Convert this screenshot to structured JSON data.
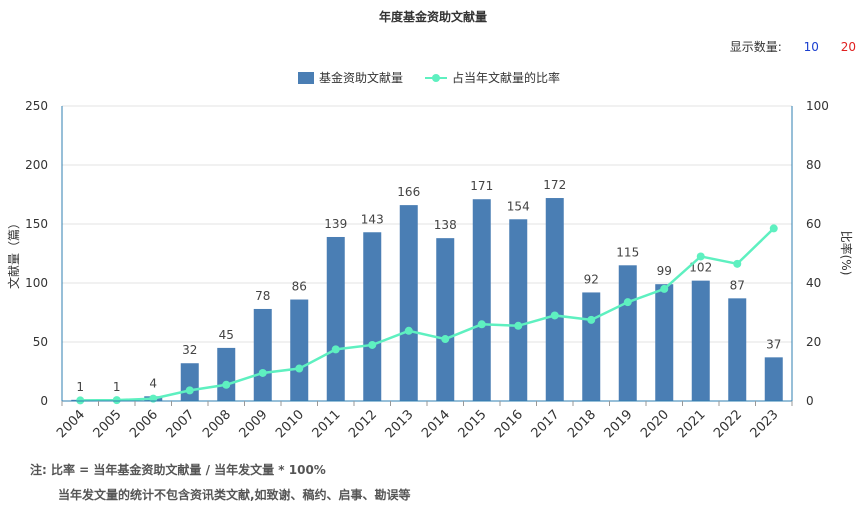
{
  "title": "年度基金资助文献量",
  "display_count": {
    "label": "显示数量:",
    "options": [
      "10",
      "20"
    ]
  },
  "legend": {
    "bar": "基金资助文献量",
    "line": "占当年文献量的比率"
  },
  "notes": {
    "line1": "注:  比率 = 当年基金资助文献量 / 当年发文量 * 100%",
    "line2": "当年发文量的统计不包含资讯类文献,如致谢、稿约、启事、勘误等"
  },
  "colors": {
    "bar": "#4a7eb4",
    "line": "#5ef0c0",
    "axis": "#2f7fb0"
  },
  "chart_data": {
    "type": "bar",
    "categories": [
      "2004",
      "2005",
      "2006",
      "2007",
      "2008",
      "2009",
      "2010",
      "2011",
      "2012",
      "2013",
      "2014",
      "2015",
      "2016",
      "2017",
      "2018",
      "2019",
      "2020",
      "2021",
      "2022",
      "2023"
    ],
    "series": [
      {
        "name": "基金资助文献量",
        "type": "bar",
        "axis": "left",
        "values": [
          1,
          1,
          4,
          32,
          45,
          78,
          86,
          139,
          143,
          166,
          138,
          171,
          154,
          172,
          92,
          115,
          99,
          102,
          87,
          37
        ]
      },
      {
        "name": "占当年文献量的比率",
        "type": "line",
        "axis": "right",
        "values": [
          0.2,
          0.3,
          0.8,
          3.6,
          5.5,
          9.5,
          11,
          17.5,
          19,
          23.8,
          21,
          26,
          25.5,
          29,
          27.5,
          33.5,
          38,
          49,
          46.5,
          58.5
        ]
      }
    ],
    "ylabel": "文献量（篇）",
    "ylabel_right": "比率(%)",
    "ylim": [
      0,
      250
    ],
    "yticks": [
      0,
      50,
      100,
      150,
      200,
      250
    ],
    "ylim_right": [
      0,
      100
    ],
    "yticks_right": [
      0,
      20,
      40,
      60,
      80,
      100
    ],
    "grid": true,
    "legend_position": "top"
  }
}
